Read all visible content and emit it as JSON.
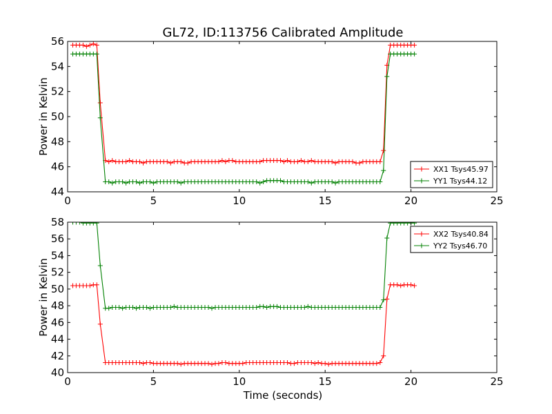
{
  "chart_data": {
    "title": "GL72, ID:113756 Calibrated Amplitude",
    "panels": [
      {
        "type": "line",
        "xlabel": "",
        "ylabel": "Power in Kelvin",
        "xlim": [
          0,
          25
        ],
        "ylim": [
          44,
          56
        ],
        "xticks": [
          0,
          5,
          10,
          15,
          20,
          25
        ],
        "yticks": [
          44,
          46,
          48,
          50,
          52,
          54,
          56
        ],
        "grid": false,
        "legend_position": "lower-right",
        "series": [
          {
            "name": "XX1 Tsys45.97",
            "color": "#ff0000",
            "x": [
              0.3,
              0.5,
              0.7,
              0.9,
              1.1,
              1.3,
              1.5,
              1.7,
              1.9,
              2.2,
              2.4,
              2.6,
              2.8,
              3.0,
              3.2,
              3.4,
              3.6,
              3.8,
              4.0,
              4.2,
              4.4,
              4.6,
              4.8,
              5.0,
              5.2,
              5.4,
              5.6,
              5.8,
              6.0,
              6.2,
              6.4,
              6.6,
              6.8,
              7.0,
              7.2,
              7.4,
              7.6,
              7.8,
              8.0,
              8.2,
              8.4,
              8.6,
              8.8,
              9.0,
              9.2,
              9.4,
              9.6,
              9.8,
              10.0,
              10.2,
              10.4,
              10.6,
              10.8,
              11.0,
              11.2,
              11.4,
              11.6,
              11.8,
              12.0,
              12.2,
              12.4,
              12.6,
              12.8,
              13.0,
              13.2,
              13.4,
              13.6,
              13.8,
              14.0,
              14.2,
              14.4,
              14.6,
              14.8,
              15.0,
              15.2,
              15.4,
              15.6,
              15.8,
              16.0,
              16.2,
              16.4,
              16.6,
              16.8,
              17.0,
              17.2,
              17.4,
              17.6,
              17.8,
              18.0,
              18.2,
              18.4,
              18.6,
              18.8,
              19.0,
              19.2,
              19.4,
              19.6,
              19.8,
              20.0,
              20.2
            ],
            "y": [
              55.7,
              55.7,
              55.7,
              55.7,
              55.6,
              55.7,
              55.8,
              55.7,
              51.1,
              46.5,
              46.4,
              46.5,
              46.4,
              46.4,
              46.4,
              46.4,
              46.5,
              46.4,
              46.4,
              46.4,
              46.3,
              46.4,
              46.4,
              46.4,
              46.4,
              46.4,
              46.4,
              46.4,
              46.3,
              46.4,
              46.4,
              46.4,
              46.3,
              46.3,
              46.4,
              46.4,
              46.4,
              46.4,
              46.4,
              46.4,
              46.4,
              46.4,
              46.4,
              46.5,
              46.4,
              46.5,
              46.5,
              46.4,
              46.4,
              46.4,
              46.4,
              46.4,
              46.4,
              46.4,
              46.4,
              46.5,
              46.5,
              46.5,
              46.5,
              46.5,
              46.5,
              46.4,
              46.5,
              46.4,
              46.4,
              46.4,
              46.5,
              46.4,
              46.4,
              46.5,
              46.4,
              46.4,
              46.4,
              46.4,
              46.4,
              46.4,
              46.3,
              46.4,
              46.4,
              46.4,
              46.4,
              46.4,
              46.3,
              46.3,
              46.4,
              46.4,
              46.4,
              46.4,
              46.4,
              46.4,
              47.3,
              54.1,
              55.7,
              55.7,
              55.7,
              55.7,
              55.7,
              55.7,
              55.7,
              55.7
            ]
          },
          {
            "name": "YY1 Tsys44.12",
            "color": "#008000",
            "x": [
              0.3,
              0.5,
              0.7,
              0.9,
              1.1,
              1.3,
              1.5,
              1.7,
              1.9,
              2.2,
              2.4,
              2.6,
              2.8,
              3.0,
              3.2,
              3.4,
              3.6,
              3.8,
              4.0,
              4.2,
              4.4,
              4.6,
              4.8,
              5.0,
              5.2,
              5.4,
              5.6,
              5.8,
              6.0,
              6.2,
              6.4,
              6.6,
              6.8,
              7.0,
              7.2,
              7.4,
              7.6,
              7.8,
              8.0,
              8.2,
              8.4,
              8.6,
              8.8,
              9.0,
              9.2,
              9.4,
              9.6,
              9.8,
              10.0,
              10.2,
              10.4,
              10.6,
              10.8,
              11.0,
              11.2,
              11.4,
              11.6,
              11.8,
              12.0,
              12.2,
              12.4,
              12.6,
              12.8,
              13.0,
              13.2,
              13.4,
              13.6,
              13.8,
              14.0,
              14.2,
              14.4,
              14.6,
              14.8,
              15.0,
              15.2,
              15.4,
              15.6,
              15.8,
              16.0,
              16.2,
              16.4,
              16.6,
              16.8,
              17.0,
              17.2,
              17.4,
              17.6,
              17.8,
              18.0,
              18.2,
              18.4,
              18.6,
              18.8,
              19.0,
              19.2,
              19.4,
              19.6,
              19.8,
              20.0,
              20.2
            ],
            "y": [
              55.0,
              55.0,
              55.0,
              55.0,
              55.0,
              55.0,
              55.0,
              55.0,
              49.9,
              44.8,
              44.8,
              44.7,
              44.8,
              44.8,
              44.8,
              44.7,
              44.8,
              44.8,
              44.8,
              44.7,
              44.8,
              44.8,
              44.8,
              44.7,
              44.8,
              44.8,
              44.8,
              44.8,
              44.8,
              44.8,
              44.8,
              44.7,
              44.8,
              44.8,
              44.8,
              44.8,
              44.8,
              44.8,
              44.8,
              44.8,
              44.8,
              44.8,
              44.8,
              44.8,
              44.8,
              44.8,
              44.8,
              44.8,
              44.8,
              44.8,
              44.8,
              44.8,
              44.8,
              44.8,
              44.7,
              44.8,
              44.9,
              44.9,
              44.9,
              44.9,
              44.9,
              44.8,
              44.8,
              44.8,
              44.8,
              44.8,
              44.8,
              44.8,
              44.8,
              44.7,
              44.8,
              44.8,
              44.8,
              44.8,
              44.8,
              44.8,
              44.7,
              44.8,
              44.8,
              44.8,
              44.8,
              44.8,
              44.8,
              44.8,
              44.8,
              44.8,
              44.8,
              44.8,
              44.8,
              44.8,
              45.7,
              53.2,
              55.0,
              55.0,
              55.0,
              55.0,
              55.0,
              55.0,
              55.0,
              55.0
            ]
          }
        ]
      },
      {
        "type": "line",
        "xlabel": "Time (seconds)",
        "ylabel": "Power in Kelvin",
        "xlim": [
          0,
          25
        ],
        "ylim": [
          40,
          58
        ],
        "xticks": [
          0,
          5,
          10,
          15,
          20,
          25
        ],
        "yticks": [
          40,
          42,
          44,
          46,
          48,
          50,
          52,
          54,
          56,
          58
        ],
        "grid": false,
        "legend_position": "upper-right",
        "series": [
          {
            "name": "XX2 Tsys40.84",
            "color": "#ff0000",
            "x": [
              0.3,
              0.5,
              0.7,
              0.9,
              1.1,
              1.3,
              1.5,
              1.7,
              1.9,
              2.2,
              2.4,
              2.6,
              2.8,
              3.0,
              3.2,
              3.4,
              3.6,
              3.8,
              4.0,
              4.2,
              4.4,
              4.6,
              4.8,
              5.0,
              5.2,
              5.4,
              5.6,
              5.8,
              6.0,
              6.2,
              6.4,
              6.6,
              6.8,
              7.0,
              7.2,
              7.4,
              7.6,
              7.8,
              8.0,
              8.2,
              8.4,
              8.6,
              8.8,
              9.0,
              9.2,
              9.4,
              9.6,
              9.8,
              10.0,
              10.2,
              10.4,
              10.6,
              10.8,
              11.0,
              11.2,
              11.4,
              11.6,
              11.8,
              12.0,
              12.2,
              12.4,
              12.6,
              12.8,
              13.0,
              13.2,
              13.4,
              13.6,
              13.8,
              14.0,
              14.2,
              14.4,
              14.6,
              14.8,
              15.0,
              15.2,
              15.4,
              15.6,
              15.8,
              16.0,
              16.2,
              16.4,
              16.6,
              16.8,
              17.0,
              17.2,
              17.4,
              17.6,
              17.8,
              18.0,
              18.2,
              18.4,
              18.6,
              18.8,
              19.0,
              19.2,
              19.4,
              19.6,
              19.8,
              20.0,
              20.2
            ],
            "y": [
              50.4,
              50.4,
              50.4,
              50.4,
              50.4,
              50.4,
              50.5,
              50.5,
              45.8,
              41.2,
              41.2,
              41.2,
              41.2,
              41.2,
              41.2,
              41.2,
              41.2,
              41.2,
              41.2,
              41.2,
              41.1,
              41.2,
              41.2,
              41.1,
              41.1,
              41.1,
              41.1,
              41.1,
              41.1,
              41.1,
              41.1,
              41.0,
              41.1,
              41.1,
              41.1,
              41.1,
              41.1,
              41.1,
              41.1,
              41.1,
              41.0,
              41.1,
              41.1,
              41.2,
              41.2,
              41.1,
              41.1,
              41.1,
              41.1,
              41.1,
              41.2,
              41.2,
              41.2,
              41.2,
              41.2,
              41.2,
              41.2,
              41.2,
              41.2,
              41.2,
              41.2,
              41.2,
              41.2,
              41.1,
              41.1,
              41.2,
              41.2,
              41.2,
              41.2,
              41.2,
              41.1,
              41.2,
              41.1,
              41.1,
              41.0,
              41.1,
              41.1,
              41.1,
              41.1,
              41.1,
              41.1,
              41.1,
              41.1,
              41.1,
              41.1,
              41.1,
              41.1,
              41.1,
              41.1,
              41.2,
              42.0,
              48.8,
              50.5,
              50.5,
              50.5,
              50.4,
              50.5,
              50.5,
              50.5,
              50.4
            ]
          },
          {
            "name": "YY2 Tsys46.70",
            "color": "#008000",
            "x": [
              0.3,
              0.5,
              0.7,
              0.9,
              1.1,
              1.3,
              1.5,
              1.7,
              1.9,
              2.2,
              2.4,
              2.6,
              2.8,
              3.0,
              3.2,
              3.4,
              3.6,
              3.8,
              4.0,
              4.2,
              4.4,
              4.6,
              4.8,
              5.0,
              5.2,
              5.4,
              5.6,
              5.8,
              6.0,
              6.2,
              6.4,
              6.6,
              6.8,
              7.0,
              7.2,
              7.4,
              7.6,
              7.8,
              8.0,
              8.2,
              8.4,
              8.6,
              8.8,
              9.0,
              9.2,
              9.4,
              9.6,
              9.8,
              10.0,
              10.2,
              10.4,
              10.6,
              10.8,
              11.0,
              11.2,
              11.4,
              11.6,
              11.8,
              12.0,
              12.2,
              12.4,
              12.6,
              12.8,
              13.0,
              13.2,
              13.4,
              13.6,
              13.8,
              14.0,
              14.2,
              14.4,
              14.6,
              14.8,
              15.0,
              15.2,
              15.4,
              15.6,
              15.8,
              16.0,
              16.2,
              16.4,
              16.6,
              16.8,
              17.0,
              17.2,
              17.4,
              17.6,
              17.8,
              18.0,
              18.2,
              18.4,
              18.6,
              18.8,
              19.0,
              19.2,
              19.4,
              19.6,
              19.8,
              20.0,
              20.2
            ],
            "y": [
              58.0,
              58.0,
              58.0,
              57.9,
              57.9,
              57.9,
              57.9,
              57.9,
              52.8,
              47.7,
              47.7,
              47.8,
              47.8,
              47.8,
              47.7,
              47.8,
              47.8,
              47.8,
              47.7,
              47.8,
              47.8,
              47.8,
              47.7,
              47.8,
              47.8,
              47.8,
              47.8,
              47.8,
              47.8,
              47.9,
              47.8,
              47.8,
              47.8,
              47.8,
              47.8,
              47.8,
              47.8,
              47.8,
              47.8,
              47.8,
              47.7,
              47.8,
              47.8,
              47.8,
              47.8,
              47.8,
              47.8,
              47.8,
              47.8,
              47.8,
              47.8,
              47.8,
              47.8,
              47.8,
              47.9,
              47.9,
              47.8,
              47.9,
              47.9,
              47.9,
              47.8,
              47.8,
              47.8,
              47.8,
              47.8,
              47.8,
              47.8,
              47.8,
              47.9,
              47.8,
              47.8,
              47.8,
              47.8,
              47.8,
              47.8,
              47.8,
              47.8,
              47.8,
              47.8,
              47.8,
              47.8,
              47.8,
              47.8,
              47.8,
              47.8,
              47.8,
              47.8,
              47.8,
              47.8,
              47.8,
              48.7,
              56.1,
              57.9,
              57.9,
              57.9,
              57.9,
              57.9,
              57.9,
              57.9,
              57.9
            ]
          }
        ]
      }
    ]
  }
}
